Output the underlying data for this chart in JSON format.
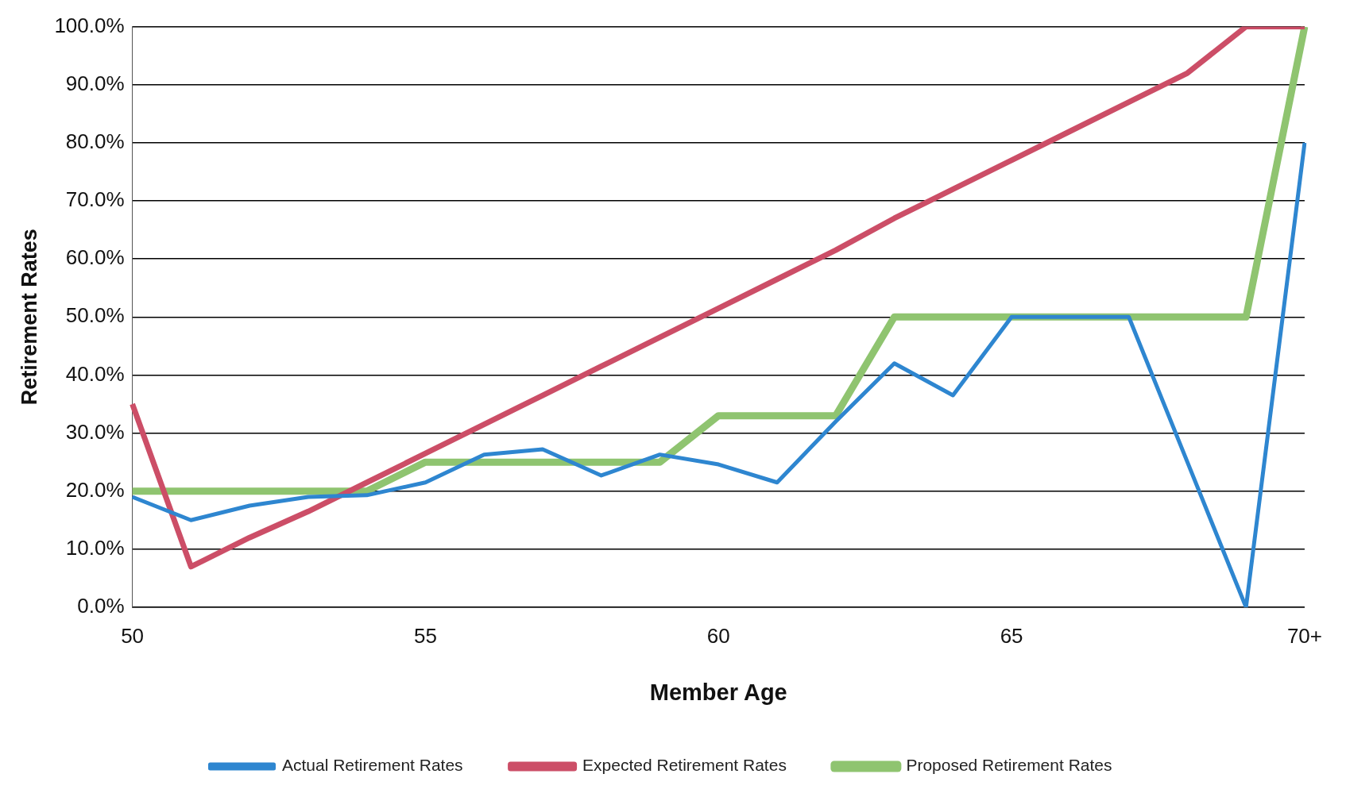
{
  "chart_data": {
    "type": "line",
    "xlabel": "Member Age",
    "ylabel": "Retirement Rates",
    "categories": [
      "50",
      null,
      null,
      null,
      null,
      "55",
      null,
      null,
      null,
      null,
      "60",
      null,
      null,
      null,
      null,
      "65",
      null,
      null,
      null,
      null,
      "70+"
    ],
    "series": [
      {
        "name": "Actual Retirement Rates",
        "color": "#2e86d0",
        "values": [
          19,
          15,
          17.5,
          19,
          19.3,
          21.5,
          26.3,
          27.2,
          22.7,
          26.3,
          24.6,
          21.5,
          32,
          42,
          36.5,
          50,
          50,
          50,
          25,
          0,
          80
        ]
      },
      {
        "name": "Expected Retirement Rates",
        "color": "#cc4e67",
        "values": [
          35,
          7,
          12,
          16.5,
          21.5,
          26.5,
          31.5,
          36.5,
          41.5,
          46.5,
          51.5,
          56.5,
          61.5,
          67,
          72,
          77,
          82,
          87,
          92,
          100,
          100
        ]
      },
      {
        "name": "Proposed Retirement Rates",
        "color": "#8fc470",
        "values": [
          20,
          20,
          20,
          20,
          20,
          25,
          25,
          25,
          25,
          25,
          33,
          33,
          33,
          50,
          50,
          50,
          50,
          50,
          50,
          50,
          100
        ]
      }
    ],
    "ylim": [
      0,
      100
    ],
    "yticks": [
      {
        "value": 0,
        "label": "0.0%"
      },
      {
        "value": 10,
        "label": "10.0%"
      },
      {
        "value": 20,
        "label": "20.0%"
      },
      {
        "value": 30,
        "label": "30.0%"
      },
      {
        "value": 40,
        "label": "40.0%"
      },
      {
        "value": 50,
        "label": "50.0%"
      },
      {
        "value": 60,
        "label": "60.0%"
      },
      {
        "value": 70,
        "label": "70.0%"
      },
      {
        "value": 80,
        "label": "80.0%"
      },
      {
        "value": 90,
        "label": "90.0%"
      },
      {
        "value": 100,
        "label": "100.0%"
      }
    ],
    "grid": "y",
    "legend": "bottom",
    "marker": "none",
    "line_style": "solid"
  }
}
